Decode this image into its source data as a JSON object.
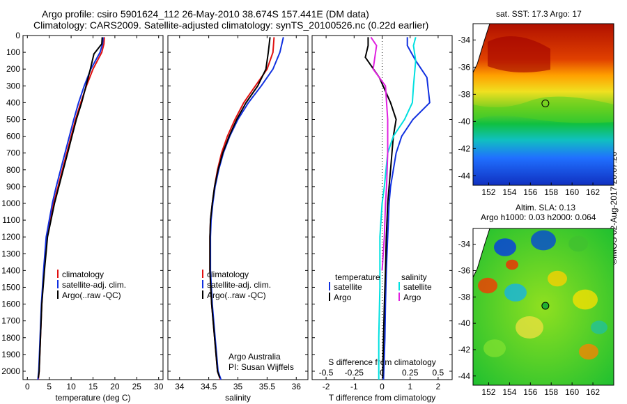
{
  "titles": {
    "line1": "Argo profile: csiro 5901624_112 26-May-2010 38.674S 157.441E (DM data)",
    "line2": "Climatology: CARS2009. Satellite-adjusted climatology: synTS_20100526.nc (0.22d earlier)"
  },
  "stamp": "©IMOS 02-Aug-2017 20:07:20",
  "colors": {
    "climatology": "#e01010",
    "satellite": "#1030e0",
    "argo": "#000000",
    "s_satellite": "#00e0e0",
    "s_argo": "#e020e0"
  },
  "chart_data": [
    {
      "type": "line",
      "xlabel": "temperature (deg C)",
      "ylabel": "",
      "xlim": [
        -1,
        31
      ],
      "ylim": [
        2050,
        0
      ],
      "xticks": [
        0,
        5,
        10,
        15,
        20,
        25,
        30
      ],
      "yticks": [
        0,
        100,
        200,
        300,
        400,
        500,
        600,
        700,
        800,
        900,
        1000,
        1100,
        1200,
        1300,
        1400,
        1500,
        1600,
        1700,
        1800,
        1900,
        2000
      ],
      "legend": [
        "climatology",
        "satellite-adj. clim.",
        "Argo(..raw -QC)"
      ],
      "series": [
        {
          "name": "climatology",
          "color": "climatology",
          "x": [
            17.6,
            17.5,
            17.0,
            15.0,
            13.5,
            12.2,
            11.0,
            10.0,
            9.0,
            8.0,
            7.0,
            6.0,
            5.2,
            4.5,
            3.8,
            3.3,
            3.0,
            2.7,
            2.5
          ],
          "y": [
            10,
            50,
            100,
            200,
            300,
            400,
            500,
            600,
            700,
            800,
            900,
            1000,
            1100,
            1200,
            1400,
            1600,
            1800,
            2000,
            2050
          ]
        },
        {
          "name": "satellite-adj. clim.",
          "color": "satellite",
          "x": [
            17.3,
            17.2,
            16.6,
            14.5,
            13.0,
            11.7,
            10.6,
            9.6,
            8.6,
            7.6,
            6.6,
            5.7,
            5.0,
            4.3,
            3.7,
            3.2,
            2.9,
            2.6,
            2.4
          ],
          "y": [
            10,
            50,
            100,
            200,
            300,
            400,
            500,
            600,
            700,
            800,
            900,
            1000,
            1100,
            1200,
            1400,
            1600,
            1800,
            2000,
            2050
          ]
        },
        {
          "name": "Argo(..raw -QC)",
          "color": "argo",
          "x": [
            17.1,
            17.0,
            15.2,
            14.4,
            13.4,
            12.4,
            11.2,
            10.2,
            9.2,
            8.2,
            7.2,
            6.2,
            5.4,
            4.6,
            3.9,
            3.3,
            3.0,
            2.7,
            2.5
          ],
          "y": [
            10,
            50,
            110,
            200,
            300,
            400,
            500,
            600,
            700,
            800,
            900,
            1000,
            1100,
            1200,
            1400,
            1600,
            1800,
            2000,
            2040
          ]
        }
      ]
    },
    {
      "type": "line",
      "xlabel": "salinity",
      "ylabel": "",
      "xlim": [
        33.8,
        36.2
      ],
      "ylim": [
        2050,
        0
      ],
      "xticks": [
        34,
        34.5,
        35,
        35.5,
        36
      ],
      "legend": [
        "climatology",
        "satellite-adj. clim.",
        "Argo(..raw -QC)"
      ],
      "annotation": [
        "Argo Australia",
        "PI: Susan Wijffels"
      ],
      "series": [
        {
          "name": "climatology",
          "color": "climatology",
          "x": [
            35.62,
            35.6,
            35.5,
            35.3,
            35.1,
            34.95,
            34.82,
            34.72,
            34.65,
            34.6,
            34.56,
            34.53,
            34.52,
            34.52,
            34.55,
            34.6,
            34.65,
            34.7
          ],
          "y": [
            10,
            100,
            200,
            300,
            400,
            500,
            600,
            700,
            800,
            900,
            1000,
            1100,
            1200,
            1400,
            1600,
            1800,
            2000,
            2050
          ]
        },
        {
          "name": "satellite-adj. clim.",
          "color": "satellite",
          "x": [
            35.78,
            35.72,
            35.6,
            35.4,
            35.18,
            35.0,
            34.86,
            34.75,
            34.67,
            34.61,
            34.57,
            34.54,
            34.53,
            34.53,
            34.56,
            34.61,
            34.66,
            34.71
          ],
          "y": [
            10,
            100,
            200,
            300,
            400,
            500,
            600,
            700,
            800,
            900,
            1000,
            1100,
            1200,
            1400,
            1600,
            1800,
            2000,
            2050
          ]
        },
        {
          "name": "Argo(..raw -QC)",
          "color": "argo",
          "x": [
            35.55,
            35.52,
            35.48,
            35.34,
            35.14,
            34.98,
            34.85,
            34.74,
            34.66,
            34.6,
            34.56,
            34.53,
            34.52,
            34.52,
            34.55,
            34.6,
            34.65,
            34.69
          ],
          "y": [
            10,
            100,
            200,
            300,
            400,
            500,
            600,
            700,
            800,
            900,
            1000,
            1100,
            1200,
            1400,
            1600,
            1800,
            2000,
            2040
          ]
        }
      ]
    },
    {
      "type": "line",
      "xlabel": "T difference from climatology",
      "xlabel_top": "S difference from climatology",
      "xlim": [
        -2.5,
        2.5
      ],
      "ylim": [
        2050,
        0
      ],
      "xticks": [
        -2,
        -1,
        0,
        1,
        2
      ],
      "s_ticks": [
        "-0.5",
        "-0.25",
        "0",
        "0.25",
        "0.5"
      ],
      "legend_titles": [
        "temperature",
        "salinity"
      ],
      "legend": [
        "satellite",
        "Argo",
        "satellite",
        "Argo"
      ],
      "series": [
        {
          "name": "T satellite",
          "color": "satellite",
          "x": [
            0.9,
            0.9,
            1.2,
            1.6,
            1.7,
            1.1,
            0.7,
            0.5,
            0.4,
            0.3,
            0.25,
            0.2,
            0.15,
            0.12,
            0.1,
            0.07,
            0.05
          ],
          "y": [
            10,
            60,
            150,
            250,
            400,
            500,
            600,
            700,
            800,
            900,
            1000,
            1200,
            1400,
            1600,
            1800,
            1950,
            2050
          ]
        },
        {
          "name": "T Argo",
          "color": "argo",
          "x": [
            -0.5,
            -0.5,
            -0.6,
            -0.1,
            0.3,
            0.5,
            0.4,
            0.35,
            0.3,
            0.25,
            0.2,
            0.15,
            0.12,
            0.08,
            0.05,
            0.02
          ],
          "y": [
            10,
            60,
            130,
            250,
            400,
            500,
            600,
            700,
            800,
            900,
            1000,
            1200,
            1400,
            1600,
            1800,
            2040
          ]
        },
        {
          "name": "S satellite",
          "color": "s_satellite",
          "x": [
            0.3,
            0.28,
            0.3,
            0.28,
            0.27,
            0.2,
            0.1,
            0.05,
            0.02,
            0.0,
            -0.02,
            -0.02,
            -0.03,
            -0.03
          ],
          "y": [
            10,
            60,
            150,
            300,
            400,
            500,
            600,
            700,
            900,
            1000,
            1200,
            1500,
            1800,
            2050
          ]
        },
        {
          "name": "S Argo",
          "color": "s_argo",
          "x": [
            -0.1,
            -0.05,
            -0.08,
            0.03,
            0.05,
            0.05,
            0.04,
            0.03,
            0.02,
            0.0
          ],
          "y": [
            10,
            60,
            200,
            300,
            500,
            700,
            900,
            1000,
            1200,
            1400
          ]
        }
      ]
    },
    {
      "type": "heatmap",
      "title": "sat. SST: 17.3  Argo: 17",
      "xticks": [
        "152",
        "154",
        "156",
        "158",
        "160",
        "162"
      ],
      "yticks": [
        "-34",
        "-36",
        "-38",
        "-40",
        "-42",
        "-44"
      ],
      "xlim": [
        150.5,
        164
      ],
      "ylim": [
        -44.7,
        -32.8
      ],
      "marker": [
        157.44,
        -38.67
      ]
    },
    {
      "type": "heatmap",
      "title": [
        "Altim. SLA: 0.13",
        "Argo h1000: 0.03 h2000: 0.064"
      ],
      "xticks": [
        "152",
        "154",
        "156",
        "158",
        "160",
        "162"
      ],
      "yticks": [
        "-34",
        "-36",
        "-38",
        "-40",
        "-42",
        "-44"
      ],
      "xlim": [
        150.5,
        164
      ],
      "ylim": [
        -44.7,
        -32.8
      ],
      "marker": [
        157.44,
        -38.67
      ]
    }
  ]
}
